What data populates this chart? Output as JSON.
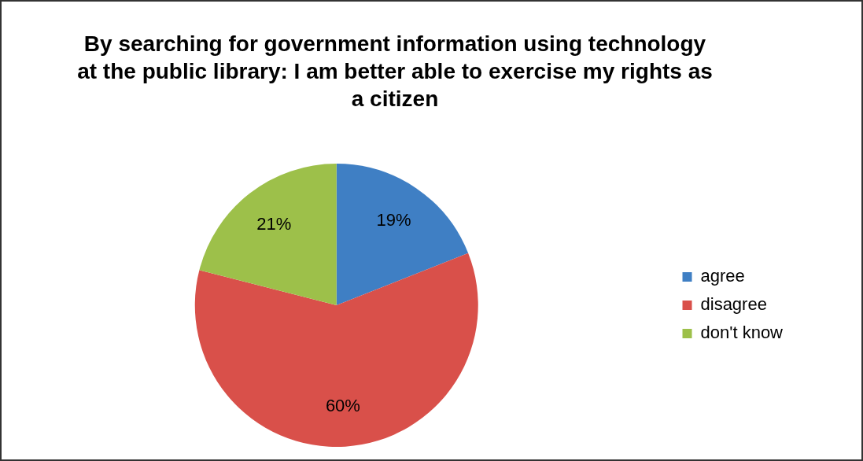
{
  "chart_data": {
    "type": "pie",
    "title": "By searching for government information using technology at the public library: I am better able to exercise my rights as a citizen",
    "categories": [
      "agree",
      "disagree",
      "don't know"
    ],
    "values": [
      19,
      60,
      21
    ],
    "colors": [
      "#3f7fc4",
      "#d9504a",
      "#9dc04a"
    ],
    "value_labels": [
      "19%",
      "60%",
      "21%"
    ],
    "legend": "right"
  }
}
